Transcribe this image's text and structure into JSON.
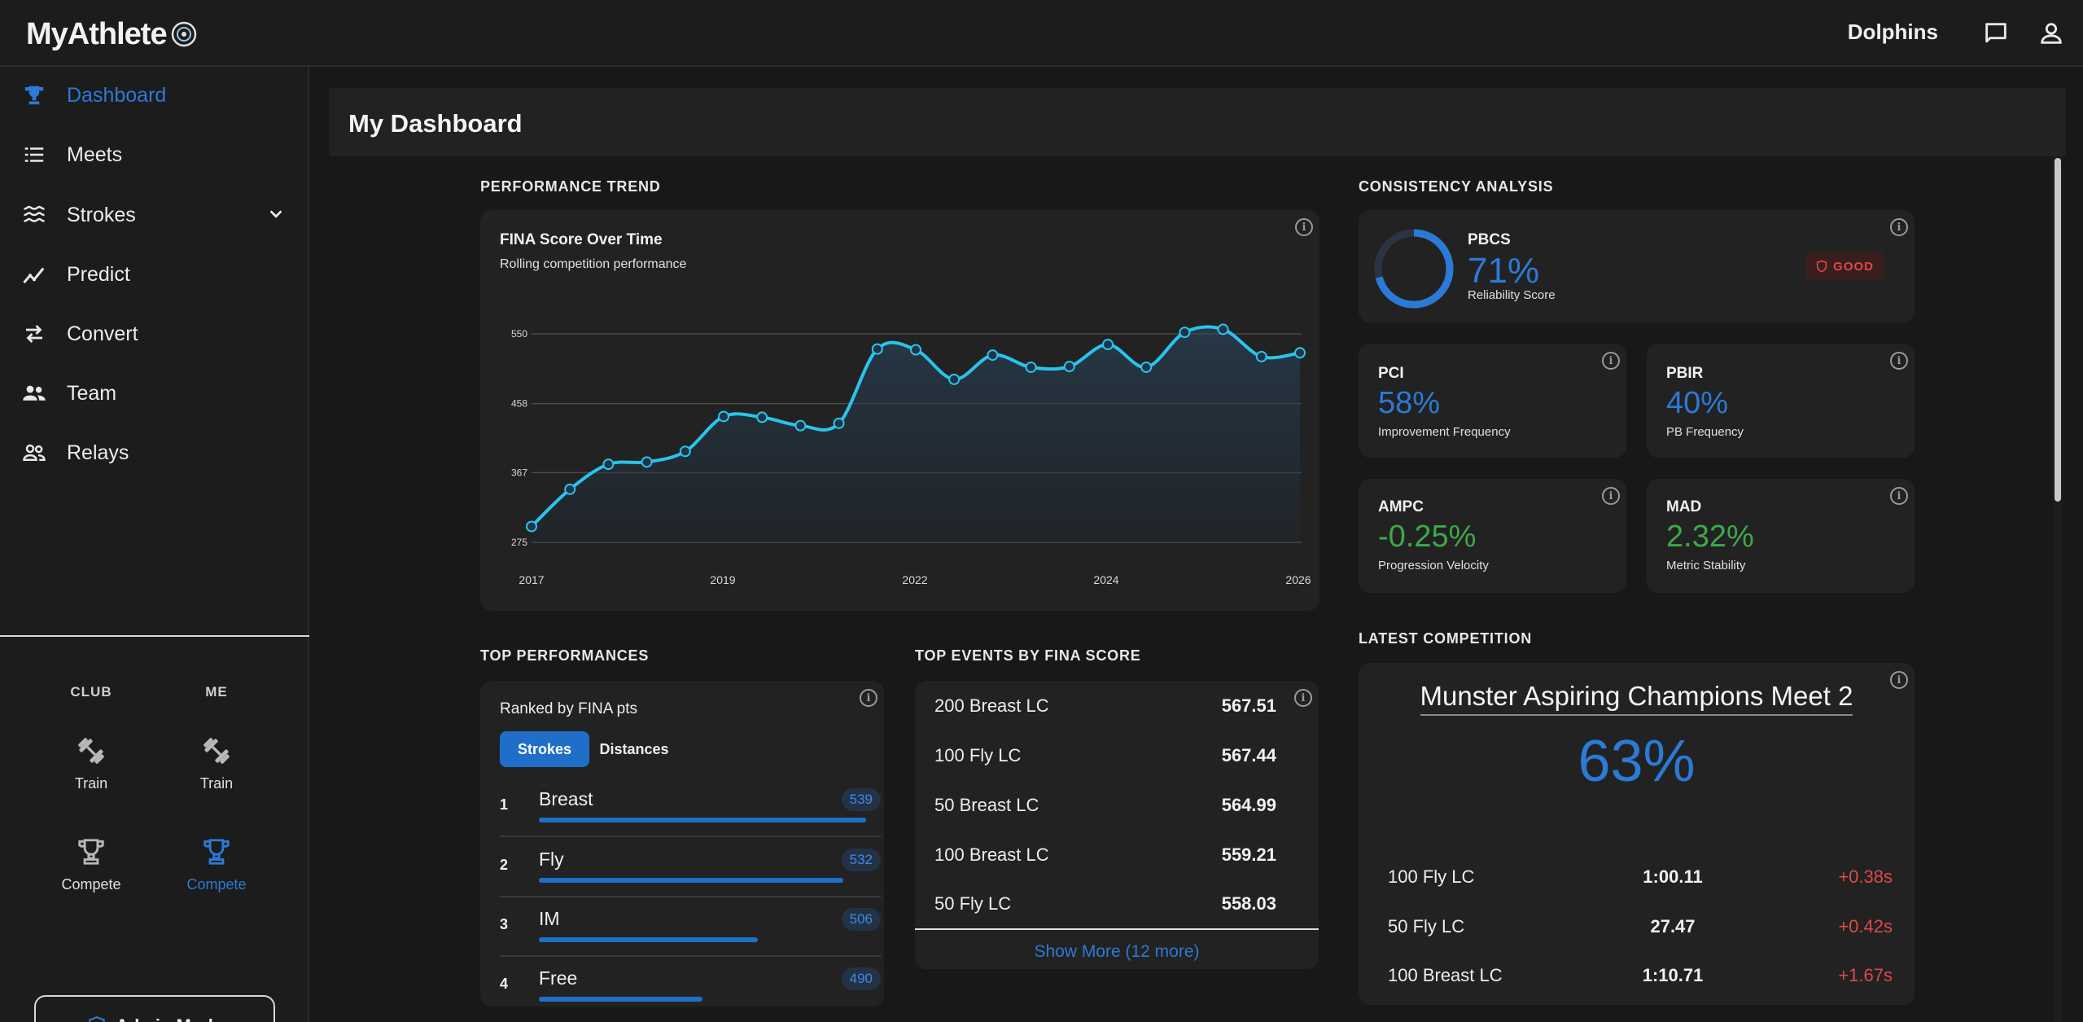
{
  "app": {
    "name": "MyAthlete",
    "club": "Dolphins"
  },
  "sidebar": {
    "items": [
      {
        "label": "Dashboard",
        "icon": "trophy-icon",
        "active": true
      },
      {
        "label": "Meets",
        "icon": "list-icon"
      },
      {
        "label": "Strokes",
        "icon": "waves-icon",
        "expandable": true
      },
      {
        "label": "Predict",
        "icon": "trend-icon"
      },
      {
        "label": "Convert",
        "icon": "swap-icon"
      },
      {
        "label": "Team",
        "icon": "group-icon"
      },
      {
        "label": "Relays",
        "icon": "group-outline-icon"
      }
    ],
    "columns": {
      "club": "CLUB",
      "me": "ME"
    },
    "tools": {
      "club_train": "Train",
      "me_train": "Train",
      "club_compete": "Compete",
      "me_compete": "Compete"
    },
    "admin_label": "Admin Mode"
  },
  "page": {
    "title": "My Dashboard"
  },
  "performance_trend": {
    "section_title": "PERFORMANCE TREND",
    "chart_title": "FINA Score Over Time",
    "chart_subtitle": "Rolling competition performance"
  },
  "chart_data": {
    "type": "area",
    "title": "FINA Score Over Time",
    "subtitle": "Rolling competition performance",
    "x_ticks": [
      "2017",
      "2019",
      "2022",
      "2024",
      "2026"
    ],
    "y_ticks": [
      275,
      367,
      458,
      550
    ],
    "ylim": [
      275,
      550
    ],
    "grid": true,
    "line_color": "#29c4ec",
    "series": [
      {
        "values": [
          296,
          345,
          378,
          381,
          395,
          441,
          440,
          429,
          432,
          530,
          529,
          490,
          522,
          506,
          507,
          536,
          506,
          552,
          556,
          520,
          525
        ]
      }
    ]
  },
  "consistency": {
    "section_title": "CONSISTENCY ANALYSIS",
    "pbcs": {
      "label": "PBCS",
      "value": "71%",
      "desc": "Reliability Score",
      "badge": "GOOD",
      "ring_fraction": 0.71
    },
    "pci": {
      "label": "PCI",
      "value": "58%",
      "desc": "Improvement Frequency"
    },
    "pbir": {
      "label": "PBIR",
      "value": "40%",
      "desc": "PB Frequency"
    },
    "ampc": {
      "label": "AMPC",
      "value": "-0.25%",
      "desc": "Progression Velocity"
    },
    "mad": {
      "label": "MAD",
      "value": "2.32%",
      "desc": "Metric Stability"
    }
  },
  "top_performances": {
    "section_title": "TOP PERFORMANCES",
    "subtitle": "Ranked by FINA pts",
    "toggle": [
      "Strokes",
      "Distances"
    ],
    "rows": [
      {
        "rank": "1",
        "name": "Breast",
        "pts": "539",
        "fraction": 1.0
      },
      {
        "rank": "2",
        "name": "Fly",
        "pts": "532",
        "fraction": 0.93
      },
      {
        "rank": "3",
        "name": "IM",
        "pts": "506",
        "fraction": 0.67
      },
      {
        "rank": "4",
        "name": "Free",
        "pts": "490",
        "fraction": 0.5
      }
    ]
  },
  "top_events": {
    "section_title": "TOP EVENTS BY FINA SCORE",
    "rows": [
      {
        "event": "200 Breast LC",
        "score": "567.51"
      },
      {
        "event": "100 Fly LC",
        "score": "567.44"
      },
      {
        "event": "50 Breast LC",
        "score": "564.99"
      },
      {
        "event": "100 Breast LC",
        "score": "559.21"
      },
      {
        "event": "50 Fly LC",
        "score": "558.03"
      }
    ],
    "show_more": "Show More (12 more)"
  },
  "latest_competition": {
    "section_title": "LATEST COMPETITION",
    "name": "Munster Aspiring Champions Meet 2",
    "percent": "63%",
    "rows": [
      {
        "event": "100 Fly LC",
        "time": "1:00.11",
        "diff": "+0.38s"
      },
      {
        "event": "50 Fly LC",
        "time": "27.47",
        "diff": "+0.42s"
      },
      {
        "event": "100 Breast LC",
        "time": "1:10.71",
        "diff": "+1.67s"
      }
    ]
  },
  "colors": {
    "accent": "#2b7ad6",
    "positive": "#3ea84a",
    "negative": "#e04848"
  }
}
